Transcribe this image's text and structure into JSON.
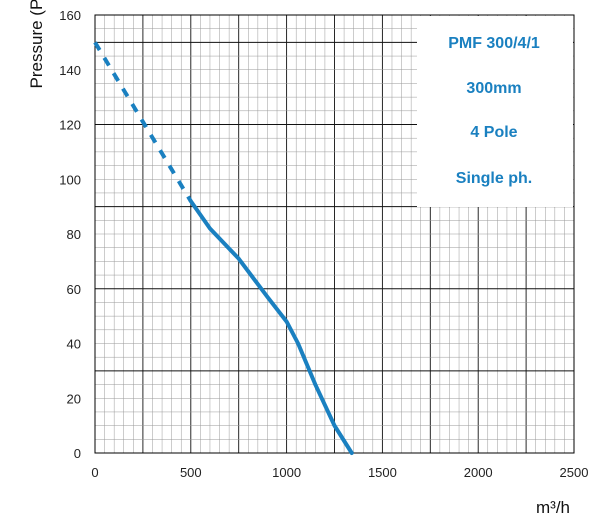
{
  "chart_data": {
    "type": "line",
    "xlabel": "m³/h",
    "ylabel": "Pressure (Pa)",
    "xlim": [
      0,
      2500
    ],
    "ylim": [
      0,
      160
    ],
    "xticks": [
      "0",
      "500",
      "1000",
      "1500",
      "2000",
      "2500"
    ],
    "yticks": [
      "0",
      "20",
      "40",
      "60",
      "80",
      "100",
      "120",
      "140",
      "160"
    ],
    "grid": true,
    "series": [
      {
        "style": "dashed",
        "color": "#1a80c0",
        "x": [
          0,
          500
        ],
        "y": [
          150,
          92
        ]
      },
      {
        "style": "solid",
        "color": "#1a80c0",
        "x": [
          500,
          600,
          750,
          900,
          1000,
          1060,
          1150,
          1250,
          1340
        ],
        "y": [
          92,
          82,
          71,
          57,
          48,
          40,
          25,
          10,
          0
        ]
      }
    ],
    "annotation": {
      "lines": [
        "PMF 300/4/1",
        "300mm",
        "4 Pole",
        "Single ph."
      ],
      "color": "#1a80c0",
      "placement": "top-right"
    }
  }
}
